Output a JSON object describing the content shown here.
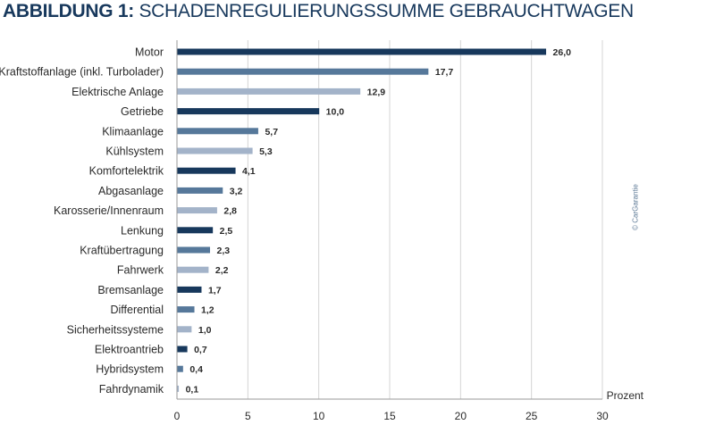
{
  "figure": {
    "title_prefix": "ABBILDUNG 1:",
    "title": "SCHADENREGULIERUNGSSUMME GEBRAUCHTWAGEN",
    "credit": "© CarGarantie"
  },
  "colors": {
    "title": "#17385c",
    "series": [
      "#17385c",
      "#56789a",
      "#a3b3c9"
    ],
    "text": "#2a2a2a",
    "axis": "#9a9a9a",
    "grid": "#d4d4d4"
  },
  "chart_data": {
    "type": "bar",
    "orientation": "horizontal",
    "title": "SCHADENREGULIERUNGSSUMME GEBRAUCHTWAGEN",
    "xlabel": "Prozent",
    "ylabel": "",
    "xlim": [
      0,
      30
    ],
    "xticks": [
      0,
      5,
      10,
      15,
      20,
      25,
      30
    ],
    "grid": true,
    "legend": "none",
    "categories": [
      "Motor",
      "Kraftstoffanlage (inkl. Turbolader)",
      "Elektrische Anlage",
      "Getriebe",
      "Klimaanlage",
      "Kühlsystem",
      "Komfortelektrik",
      "Abgasanlage",
      "Karosserie/Innenraum",
      "Lenkung",
      "Kraftübertragung",
      "Fahrwerk",
      "Bremsanlage",
      "Differential",
      "Sicherheitssysteme",
      "Elektroantrieb",
      "Hybridsystem",
      "Fahrdynamik"
    ],
    "values": [
      26.0,
      17.7,
      12.9,
      10.0,
      5.7,
      5.3,
      4.1,
      3.2,
      2.8,
      2.5,
      2.3,
      2.2,
      1.7,
      1.2,
      1.0,
      0.7,
      0.4,
      0.1
    ],
    "value_labels": [
      "26,0",
      "17,7",
      "12,9",
      "10,0",
      "5,7",
      "5,3",
      "4,1",
      "3,2",
      "2,8",
      "2,5",
      "2,3",
      "2,2",
      "1,7",
      "1,2",
      "1,0",
      "0,7",
      "0,4",
      "0,1"
    ]
  }
}
